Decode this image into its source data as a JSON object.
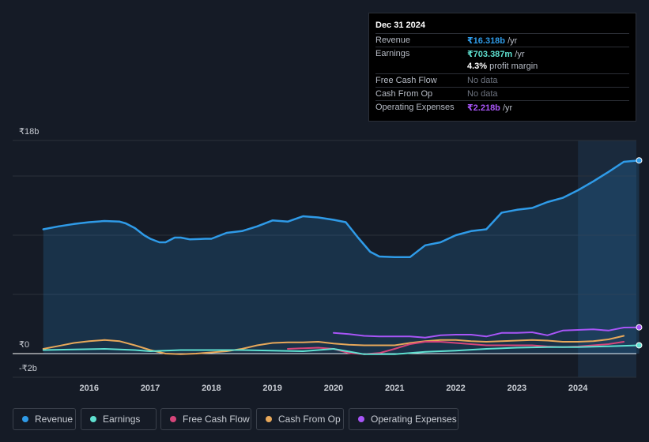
{
  "tooltip": {
    "date": "Dec 31 2024",
    "rows": [
      {
        "label": "Revenue",
        "value": "₹16.318b",
        "unit": " /yr",
        "color": "#2f9be8"
      },
      {
        "label": "Earnings",
        "value": "₹703.387m",
        "unit": " /yr",
        "color": "#5fe0d0"
      },
      {
        "label": "",
        "value": "4.3%",
        "unit": " profit margin",
        "color": "#ffffff"
      },
      {
        "label": "Free Cash Flow",
        "value": "No data",
        "unit": "",
        "color": "#6e7480"
      },
      {
        "label": "Cash From Op",
        "value": "No data",
        "unit": "",
        "color": "#6e7480"
      },
      {
        "label": "Operating Expenses",
        "value": "₹2.218b",
        "unit": " /yr",
        "color": "#a855f7"
      }
    ]
  },
  "legend": [
    {
      "label": "Revenue",
      "color": "#2f9be8"
    },
    {
      "label": "Earnings",
      "color": "#5fe0d0"
    },
    {
      "label": "Free Cash Flow",
      "color": "#d6457a"
    },
    {
      "label": "Cash From Op",
      "color": "#e8a85a"
    },
    {
      "label": "Operating Expenses",
      "color": "#a855f7"
    }
  ],
  "chart_data": {
    "type": "area",
    "title": "",
    "xlabel": "",
    "ylabel": "",
    "ylim": [
      -2,
      18
    ],
    "y_ticks": [
      "₹18b",
      "₹0",
      "-₹2b"
    ],
    "y_tick_values": [
      18,
      0,
      -2
    ],
    "x_ticks": [
      "2016",
      "2017",
      "2018",
      "2019",
      "2020",
      "2021",
      "2022",
      "2023",
      "2024"
    ],
    "x_tick_values": [
      2016,
      2017,
      2018,
      2019,
      2020,
      2021,
      2022,
      2023,
      2024
    ],
    "xlim": [
      2014.8,
      2025.0
    ],
    "highlight_from": 2024.0,
    "series": [
      {
        "name": "Revenue",
        "color": "#2f9be8",
        "fill": true,
        "points": [
          [
            2015.25,
            10.5
          ],
          [
            2015.5,
            10.75
          ],
          [
            2015.75,
            10.95
          ],
          [
            2016.0,
            11.1
          ],
          [
            2016.25,
            11.2
          ],
          [
            2016.5,
            11.15
          ],
          [
            2016.6,
            11.0
          ],
          [
            2016.75,
            10.6
          ],
          [
            2016.9,
            10.0
          ],
          [
            2017.0,
            9.7
          ],
          [
            2017.15,
            9.4
          ],
          [
            2017.25,
            9.4
          ],
          [
            2017.4,
            9.8
          ],
          [
            2017.5,
            9.8
          ],
          [
            2017.65,
            9.65
          ],
          [
            2017.9,
            9.7
          ],
          [
            2018.0,
            9.7
          ],
          [
            2018.25,
            10.2
          ],
          [
            2018.5,
            10.35
          ],
          [
            2018.75,
            10.75
          ],
          [
            2019.0,
            11.25
          ],
          [
            2019.25,
            11.15
          ],
          [
            2019.5,
            11.6
          ],
          [
            2019.75,
            11.5
          ],
          [
            2020.0,
            11.3
          ],
          [
            2020.2,
            11.1
          ],
          [
            2020.4,
            9.8
          ],
          [
            2020.6,
            8.6
          ],
          [
            2020.75,
            8.2
          ],
          [
            2021.0,
            8.15
          ],
          [
            2021.25,
            8.15
          ],
          [
            2021.5,
            9.15
          ],
          [
            2021.75,
            9.4
          ],
          [
            2022.0,
            10.0
          ],
          [
            2022.25,
            10.35
          ],
          [
            2022.5,
            10.5
          ],
          [
            2022.75,
            11.9
          ],
          [
            2023.0,
            12.15
          ],
          [
            2023.25,
            12.3
          ],
          [
            2023.5,
            12.8
          ],
          [
            2023.75,
            13.15
          ],
          [
            2024.0,
            13.8
          ],
          [
            2024.25,
            14.55
          ],
          [
            2024.5,
            15.35
          ],
          [
            2024.75,
            16.2
          ],
          [
            2025.0,
            16.318
          ]
        ]
      },
      {
        "name": "Earnings",
        "color": "#5fe0d0",
        "fill": false,
        "points": [
          [
            2015.25,
            0.3
          ],
          [
            2015.75,
            0.35
          ],
          [
            2016.25,
            0.4
          ],
          [
            2016.75,
            0.3
          ],
          [
            2017.0,
            0.2
          ],
          [
            2017.5,
            0.3
          ],
          [
            2018.0,
            0.3
          ],
          [
            2018.5,
            0.3
          ],
          [
            2019.0,
            0.25
          ],
          [
            2019.5,
            0.2
          ],
          [
            2020.0,
            0.4
          ],
          [
            2020.5,
            -0.05
          ],
          [
            2021.0,
            -0.05
          ],
          [
            2021.5,
            0.15
          ],
          [
            2022.0,
            0.25
          ],
          [
            2022.5,
            0.4
          ],
          [
            2023.0,
            0.5
          ],
          [
            2023.5,
            0.55
          ],
          [
            2024.0,
            0.55
          ],
          [
            2024.5,
            0.62
          ],
          [
            2025.0,
            0.703
          ]
        ]
      },
      {
        "name": "Free Cash Flow",
        "color": "#d6457a",
        "fill": false,
        "points": [
          [
            2019.25,
            0.4
          ],
          [
            2019.75,
            0.5
          ],
          [
            2020.0,
            0.4
          ],
          [
            2020.25,
            0.05
          ],
          [
            2020.5,
            -0.05
          ],
          [
            2020.75,
            0.05
          ],
          [
            2021.0,
            0.4
          ],
          [
            2021.25,
            0.8
          ],
          [
            2021.5,
            1.0
          ],
          [
            2021.75,
            1.0
          ],
          [
            2022.0,
            0.9
          ],
          [
            2022.25,
            0.8
          ],
          [
            2022.5,
            0.7
          ],
          [
            2022.75,
            0.7
          ],
          [
            2023.0,
            0.7
          ],
          [
            2023.25,
            0.7
          ],
          [
            2023.5,
            0.6
          ],
          [
            2023.75,
            0.55
          ],
          [
            2024.0,
            0.6
          ],
          [
            2024.25,
            0.7
          ],
          [
            2024.5,
            0.8
          ],
          [
            2024.75,
            1.0
          ]
        ]
      },
      {
        "name": "Cash From Op",
        "color": "#e8a85a",
        "fill": false,
        "points": [
          [
            2015.25,
            0.4
          ],
          [
            2015.5,
            0.65
          ],
          [
            2015.75,
            0.9
          ],
          [
            2016.0,
            1.05
          ],
          [
            2016.25,
            1.15
          ],
          [
            2016.5,
            1.05
          ],
          [
            2016.75,
            0.7
          ],
          [
            2017.0,
            0.3
          ],
          [
            2017.25,
            0.0
          ],
          [
            2017.5,
            -0.05
          ],
          [
            2017.75,
            0.0
          ],
          [
            2018.0,
            0.1
          ],
          [
            2018.25,
            0.2
          ],
          [
            2018.5,
            0.4
          ],
          [
            2018.75,
            0.7
          ],
          [
            2019.0,
            0.9
          ],
          [
            2019.25,
            0.95
          ],
          [
            2019.5,
            0.95
          ],
          [
            2019.75,
            1.0
          ],
          [
            2020.0,
            0.85
          ],
          [
            2020.25,
            0.75
          ],
          [
            2020.5,
            0.7
          ],
          [
            2020.75,
            0.7
          ],
          [
            2021.0,
            0.7
          ],
          [
            2021.25,
            0.9
          ],
          [
            2021.5,
            1.05
          ],
          [
            2021.75,
            1.15
          ],
          [
            2022.0,
            1.15
          ],
          [
            2022.25,
            1.05
          ],
          [
            2022.5,
            1.0
          ],
          [
            2022.75,
            1.05
          ],
          [
            2023.0,
            1.1
          ],
          [
            2023.25,
            1.15
          ],
          [
            2023.5,
            1.1
          ],
          [
            2023.75,
            1.0
          ],
          [
            2024.0,
            1.0
          ],
          [
            2024.25,
            1.05
          ],
          [
            2024.5,
            1.2
          ],
          [
            2024.75,
            1.5
          ]
        ]
      },
      {
        "name": "Operating Expenses",
        "color": "#a855f7",
        "fill": false,
        "points": [
          [
            2020.0,
            1.75
          ],
          [
            2020.25,
            1.65
          ],
          [
            2020.5,
            1.5
          ],
          [
            2020.75,
            1.45
          ],
          [
            2021.0,
            1.45
          ],
          [
            2021.25,
            1.45
          ],
          [
            2021.5,
            1.35
          ],
          [
            2021.75,
            1.55
          ],
          [
            2022.0,
            1.6
          ],
          [
            2022.25,
            1.6
          ],
          [
            2022.5,
            1.45
          ],
          [
            2022.75,
            1.75
          ],
          [
            2023.0,
            1.75
          ],
          [
            2023.25,
            1.8
          ],
          [
            2023.5,
            1.55
          ],
          [
            2023.75,
            1.95
          ],
          [
            2024.0,
            2.0
          ],
          [
            2024.25,
            2.05
          ],
          [
            2024.5,
            1.95
          ],
          [
            2024.75,
            2.2
          ],
          [
            2025.0,
            2.218
          ]
        ]
      }
    ]
  }
}
